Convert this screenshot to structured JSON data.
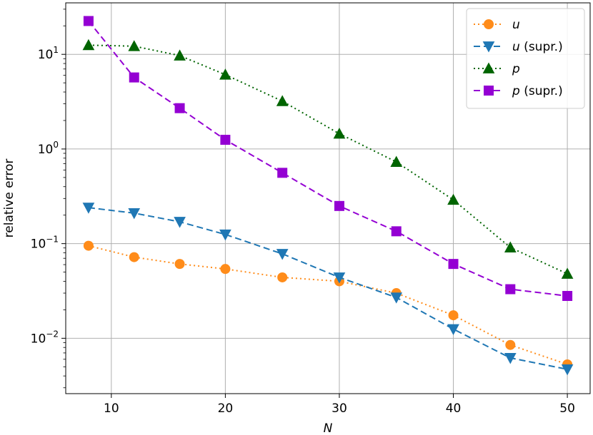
{
  "chart_data": {
    "type": "line",
    "xlabel": "N",
    "ylabel": "relative error",
    "yscale": "log",
    "xlim": [
      6,
      52
    ],
    "ylim": [
      0.0026,
      35
    ],
    "xticks": [
      10,
      20,
      30,
      40,
      50
    ],
    "xtick_labels": [
      "10",
      "20",
      "30",
      "40",
      "50"
    ],
    "yticks": [
      0.01,
      0.1,
      1,
      10
    ],
    "ytick_labels": [
      {
        "base": "10",
        "exp": "−2"
      },
      {
        "base": "10",
        "exp": "−1"
      },
      {
        "base": "10",
        "exp": "0"
      },
      {
        "base": "10",
        "exp": "1"
      }
    ],
    "grid": true,
    "legend_position": "top-right",
    "x": [
      8,
      12,
      16,
      20,
      25,
      30,
      35,
      40,
      45,
      50
    ],
    "series": [
      {
        "name": "u",
        "name_main": "u",
        "name_suffix": "",
        "color": "#ff8c1a",
        "marker": "circle",
        "linestyle": "dotted",
        "values": [
          0.095,
          0.072,
          0.061,
          0.054,
          0.044,
          0.04,
          0.03,
          0.0175,
          0.0085,
          0.0053
        ]
      },
      {
        "name": "u (supr.)",
        "name_main": "u",
        "name_suffix": " (supr.)",
        "color": "#1f77b4",
        "marker": "triangle-down",
        "linestyle": "dashed",
        "values": [
          0.24,
          0.21,
          0.17,
          0.125,
          0.078,
          0.044,
          0.027,
          0.0125,
          0.0062,
          0.0047
        ]
      },
      {
        "name": "p",
        "name_main": "p",
        "name_suffix": "",
        "color": "#006400",
        "marker": "triangle-up",
        "linestyle": "dotted",
        "values": [
          12.5,
          12.2,
          9.7,
          6.1,
          3.2,
          1.45,
          0.73,
          0.29,
          0.091,
          0.048
        ]
      },
      {
        "name": "p (supr.)",
        "name_main": "p",
        "name_suffix": " (supr.)",
        "color": "#9400d3",
        "marker": "square",
        "linestyle": "dashed",
        "values": [
          22.5,
          5.7,
          2.7,
          1.25,
          0.56,
          0.25,
          0.135,
          0.061,
          0.033,
          0.028
        ]
      }
    ]
  }
}
